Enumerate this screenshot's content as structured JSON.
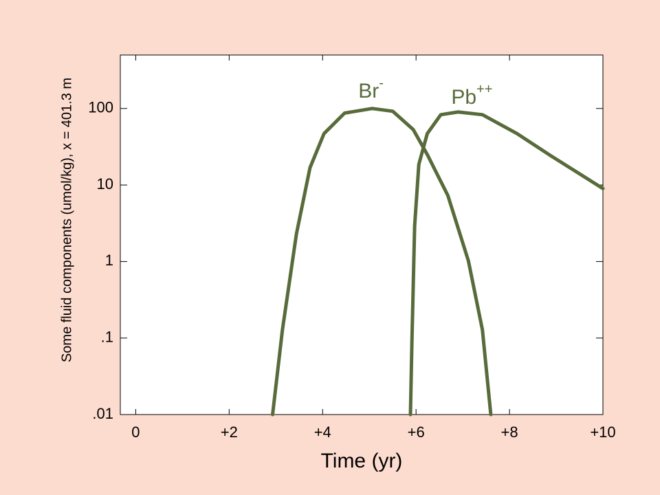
{
  "chart_data": {
    "type": "line",
    "xlabel": "Time (yr)",
    "ylabel": "Some fluid components (umol/kg), x = 401.3 m",
    "log_y": true,
    "xlim": [
      -0.33,
      10
    ],
    "ylim": [
      0.01,
      500
    ],
    "xticks": [
      0,
      {
        "value": 2,
        "label": "+2"
      },
      {
        "value": 4,
        "label": "+4"
      },
      {
        "value": 6,
        "label": "+6"
      },
      {
        "value": 8,
        "label": "+8"
      },
      {
        "value": 10,
        "label": "+10"
      }
    ],
    "yticks": [
      {
        "value": 0.01,
        "label": ".01"
      },
      {
        "value": 0.1,
        "label": ".1"
      },
      1,
      10,
      100
    ],
    "series": [
      {
        "name": "Br",
        "charge": "-",
        "color": "#586b3b",
        "x": [
          2.93,
          3.14,
          3.44,
          3.73,
          4.03,
          4.47,
          5.06,
          5.5,
          5.94,
          6.24,
          6.68,
          7.12,
          7.42,
          7.6
        ],
        "values": [
          0.01,
          0.128,
          2.3,
          16.8,
          47,
          87,
          100,
          92,
          53,
          25,
          7.3,
          1.02,
          0.128,
          0.01
        ]
      },
      {
        "name": "Pb",
        "charge": "++",
        "color": "#586b3b",
        "x": [
          5.88,
          5.91,
          5.97,
          6.06,
          6.24,
          6.53,
          6.9,
          7.42,
          8.16,
          8.89,
          10
        ],
        "values": [
          0.01,
          0.085,
          2.9,
          18.6,
          47,
          83,
          90,
          83,
          47,
          24,
          9
        ]
      }
    ]
  }
}
